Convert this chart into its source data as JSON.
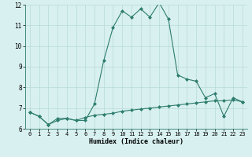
{
  "xlabel": "Humidex (Indice chaleur)",
  "x_values": [
    0,
    1,
    2,
    3,
    4,
    5,
    6,
    7,
    8,
    9,
    10,
    11,
    12,
    13,
    14,
    15,
    16,
    17,
    18,
    19,
    20,
    21,
    22,
    23
  ],
  "line1_y": [
    6.8,
    6.6,
    6.2,
    6.5,
    6.5,
    6.4,
    6.4,
    7.2,
    9.3,
    10.9,
    11.7,
    11.4,
    11.8,
    11.4,
    12.1,
    11.3,
    8.6,
    8.4,
    8.3,
    7.5,
    7.7,
    6.6,
    7.5,
    7.3
  ],
  "line2_y": [
    6.8,
    6.6,
    6.2,
    6.4,
    6.5,
    6.4,
    6.55,
    6.65,
    6.7,
    6.75,
    6.85,
    6.9,
    6.95,
    7.0,
    7.05,
    7.1,
    7.15,
    7.2,
    7.25,
    7.3,
    7.35,
    7.35,
    7.4,
    7.3
  ],
  "line_color": "#2e7d6e",
  "bg_color": "#d8f0f0",
  "plot_bg": "#d8f0f0",
  "grid_color": "#b8dada",
  "ylim": [
    6,
    12
  ],
  "yticks": [
    6,
    7,
    8,
    9,
    10,
    11,
    12
  ],
  "marker": "D",
  "marker_size": 2.0,
  "linewidth": 0.8
}
